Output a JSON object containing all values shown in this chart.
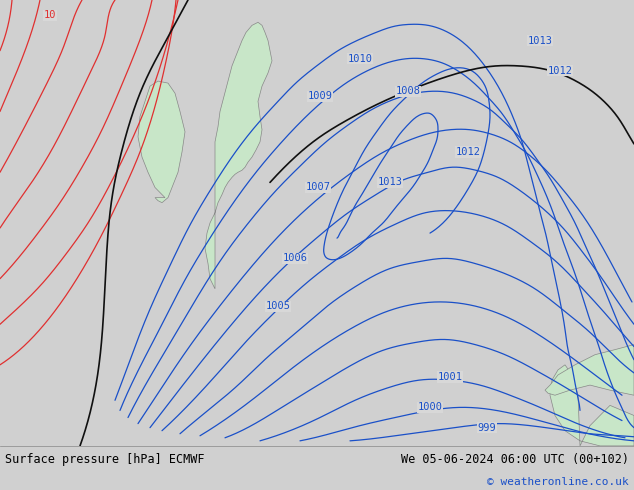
{
  "title_left": "Surface pressure [hPa] ECMWF",
  "title_right": "We 05-06-2024 06:00 UTC (00+102)",
  "copyright": "© weatheronline.co.uk",
  "background_color": "#d8d8d8",
  "land_color": "#c8e6c8",
  "map_border_color": "#888888",
  "blue_line_color": "#1a50c8",
  "red_line_color": "#e03030",
  "black_line_color": "#101010",
  "label_color_blue": "#1a50c8",
  "label_color_red": "#e03030",
  "fig_bg": "#d0d0d0",
  "bottom_bar_color": "#e0e0e0",
  "bottom_bar_height": 0.09,
  "figsize": [
    6.34,
    4.9
  ],
  "dpi": 100
}
